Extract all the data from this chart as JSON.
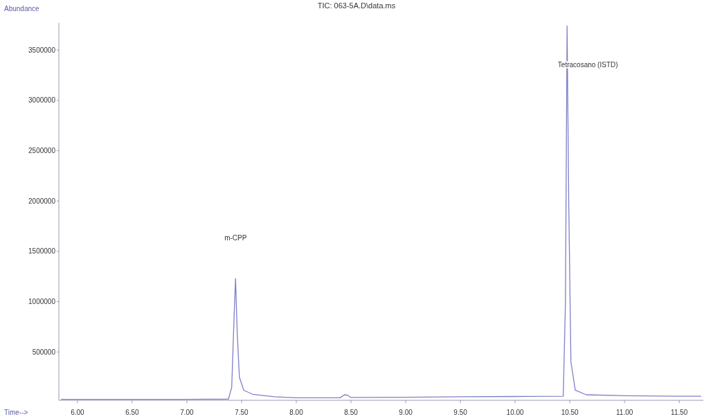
{
  "chart_data": {
    "type": "line",
    "title": "TIC: 063-5A.D\\data.ms",
    "xlabel": "Time-->",
    "ylabel": "Abundance",
    "x": [
      5.85,
      6.5,
      7.0,
      7.38,
      7.41,
      7.43,
      7.445,
      7.46,
      7.48,
      7.52,
      7.6,
      7.8,
      8.0,
      8.4,
      8.44,
      8.47,
      8.5,
      9.0,
      9.5,
      10.0,
      10.44,
      10.46,
      10.475,
      10.49,
      10.51,
      10.55,
      10.65,
      11.0,
      11.5,
      11.7
    ],
    "series": [
      {
        "color": "#7f7fc8",
        "values": [
          30000,
          30000,
          30000,
          32000,
          150000,
          800000,
          1230000,
          700000,
          250000,
          120000,
          80000,
          55000,
          45000,
          45000,
          75000,
          70000,
          48000,
          50000,
          55000,
          58000,
          60000,
          1000000,
          3740000,
          2000000,
          400000,
          120000,
          75000,
          65000,
          60000,
          60000
        ]
      }
    ],
    "annotations": [
      "m-CPP",
      "Tetracosano (ISTD)"
    ],
    "xlim": [
      5.83,
      11.72
    ],
    "ylim": [
      20000,
      3770000
    ],
    "xticks": [
      {
        "value": 6,
        "label": "6.00"
      },
      {
        "value": 6.5,
        "label": "6.50"
      },
      {
        "value": 7,
        "label": "7.00"
      },
      {
        "value": 7.5,
        "label": "7.50"
      },
      {
        "value": 8,
        "label": "8.00"
      },
      {
        "value": 8.5,
        "label": "8.50"
      },
      {
        "value": 9,
        "label": "9.00"
      },
      {
        "value": 9.5,
        "label": "9.50"
      },
      {
        "value": 10,
        "label": "10.00"
      },
      {
        "value": 10.5,
        "label": "10.50"
      },
      {
        "value": 11,
        "label": "11.00"
      },
      {
        "value": 11.5,
        "label": "11.50"
      }
    ],
    "yticks": [
      500000,
      1000000,
      1500000,
      2000000,
      2500000,
      3000000,
      3500000
    ],
    "grid": false,
    "marker": "none",
    "line_style": "solid"
  }
}
